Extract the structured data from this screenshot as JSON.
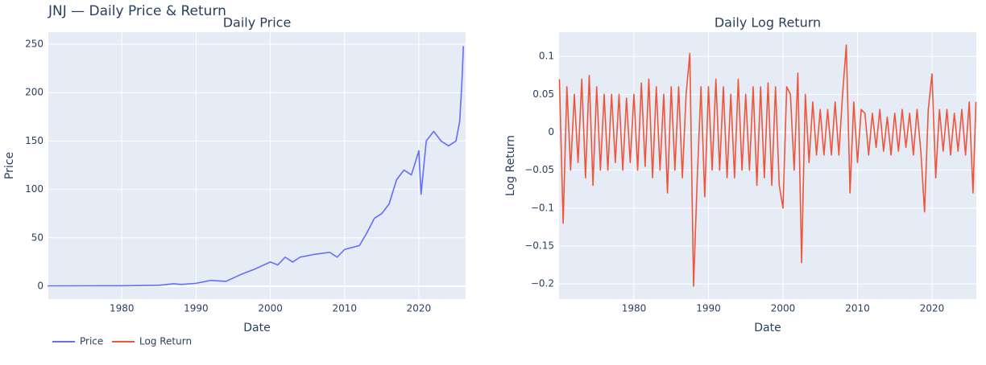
{
  "title": "JNJ — Daily Price & Return",
  "chart_data": [
    {
      "type": "line",
      "title": "Daily Price",
      "xlabel": "Date",
      "ylabel": "Price",
      "xlim": [
        1970.1,
        2026.3
      ],
      "xticks": [
        1980,
        1990,
        2000,
        2010,
        2020
      ],
      "ylim": [
        -13.3,
        262.5
      ],
      "yticks": [
        0,
        50,
        100,
        150,
        200,
        250
      ],
      "grid": true,
      "series": [
        {
          "name": "Price",
          "color": "#636efa",
          "x": [
            1970,
            1975,
            1980,
            1985,
            1987,
            1988,
            1990,
            1992,
            1994,
            1996,
            1998,
            2000,
            2001,
            2002,
            2003,
            2004,
            2006,
            2008,
            2009,
            2010,
            2012,
            2013,
            2014,
            2015,
            2016,
            2017,
            2018,
            2019,
            2020,
            2020.3,
            2021,
            2022,
            2023,
            2024,
            2025,
            2025.5,
            2025.8,
            2026
          ],
          "values": [
            0.3,
            0.4,
            0.5,
            1,
            2.5,
            1.8,
            3,
            6,
            5,
            12,
            18,
            25,
            22,
            30,
            25,
            30,
            33,
            35,
            30,
            38,
            42,
            55,
            70,
            75,
            85,
            110,
            120,
            115,
            140,
            95,
            150,
            160,
            150,
            145,
            150,
            170,
            210,
            248
          ]
        }
      ]
    },
    {
      "type": "line",
      "title": "Daily Log Return",
      "xlabel": "Date",
      "ylabel": "Log Return",
      "xlim": [
        1969.95,
        2025.95
      ],
      "xticks": [
        1980,
        1990,
        2000,
        2010,
        2020
      ],
      "ylim": [
        -0.22,
        0.132
      ],
      "yticks": [
        0.1,
        0.05,
        0,
        {
          "value": -0.05,
          "label": "−0.05"
        },
        {
          "value": -0.1,
          "label": "−0.1"
        },
        {
          "value": -0.15,
          "label": "−0.15"
        },
        {
          "value": -0.2,
          "label": "−0.2"
        }
      ],
      "grid": true,
      "series": [
        {
          "name": "Log Return",
          "color": "#ef553b",
          "x": [
            1970,
            1970.5,
            1971,
            1971.5,
            1972,
            1972.5,
            1973,
            1973.5,
            1974,
            1974.5,
            1975,
            1975.5,
            1976,
            1976.5,
            1977,
            1977.5,
            1978,
            1978.5,
            1979,
            1979.5,
            1980,
            1980.5,
            1981,
            1981.5,
            1982,
            1982.5,
            1983,
            1983.5,
            1984,
            1984.5,
            1985,
            1985.5,
            1986,
            1986.5,
            1987,
            1987.5,
            1988,
            1988.5,
            1989,
            1989.5,
            1990,
            1990.5,
            1991,
            1991.5,
            1992,
            1992.5,
            1993,
            1993.5,
            1994,
            1994.5,
            1995,
            1995.5,
            1996,
            1996.5,
            1997,
            1997.5,
            1998,
            1998.5,
            1999,
            1999.5,
            2000,
            2000.5,
            2001,
            2001.5,
            2002,
            2002.5,
            2003,
            2003.5,
            2004,
            2004.5,
            2005,
            2005.5,
            2006,
            2006.5,
            2007,
            2007.5,
            2008,
            2008.5,
            2009,
            2009.5,
            2010,
            2010.5,
            2011,
            2011.5,
            2012,
            2012.5,
            2013,
            2013.5,
            2014,
            2014.5,
            2015,
            2015.5,
            2016,
            2016.5,
            2017,
            2017.5,
            2018,
            2018.5,
            2019,
            2019.5,
            2020,
            2020.5,
            2021,
            2021.5,
            2022,
            2022.5,
            2023,
            2023.5,
            2024,
            2024.5,
            2025,
            2025.5,
            2025.9
          ],
          "values": [
            0.07,
            -0.12,
            0.06,
            -0.05,
            0.05,
            -0.04,
            0.07,
            -0.06,
            0.075,
            -0.07,
            0.06,
            -0.05,
            0.05,
            -0.05,
            0.05,
            -0.04,
            0.05,
            -0.05,
            0.045,
            -0.04,
            0.05,
            -0.05,
            0.065,
            -0.045,
            0.07,
            -0.06,
            0.06,
            -0.05,
            0.05,
            -0.08,
            0.06,
            -0.05,
            0.06,
            -0.06,
            0.05,
            0.104,
            -0.203,
            -0.06,
            0.06,
            -0.085,
            0.06,
            -0.05,
            0.07,
            -0.05,
            0.06,
            -0.06,
            0.05,
            -0.06,
            0.07,
            -0.05,
            0.05,
            -0.05,
            0.06,
            -0.07,
            0.06,
            -0.06,
            0.065,
            -0.07,
            0.06,
            -0.07,
            -0.1,
            0.06,
            0.05,
            -0.05,
            0.078,
            -0.172,
            0.05,
            -0.04,
            0.04,
            -0.03,
            0.03,
            -0.03,
            0.03,
            -0.03,
            0.04,
            -0.03,
            0.05,
            0.115,
            -0.08,
            0.04,
            -0.04,
            0.03,
            0.025,
            -0.03,
            0.025,
            -0.02,
            0.03,
            -0.025,
            0.02,
            -0.03,
            0.025,
            -0.025,
            0.03,
            -0.02,
            0.025,
            -0.03,
            0.03,
            -0.025,
            -0.105,
            0.03,
            0.077,
            -0.06,
            0.03,
            -0.025,
            0.03,
            -0.03,
            0.025,
            -0.025,
            0.03,
            -0.03,
            0.04,
            -0.08,
            0.04
          ]
        }
      ]
    }
  ]
}
